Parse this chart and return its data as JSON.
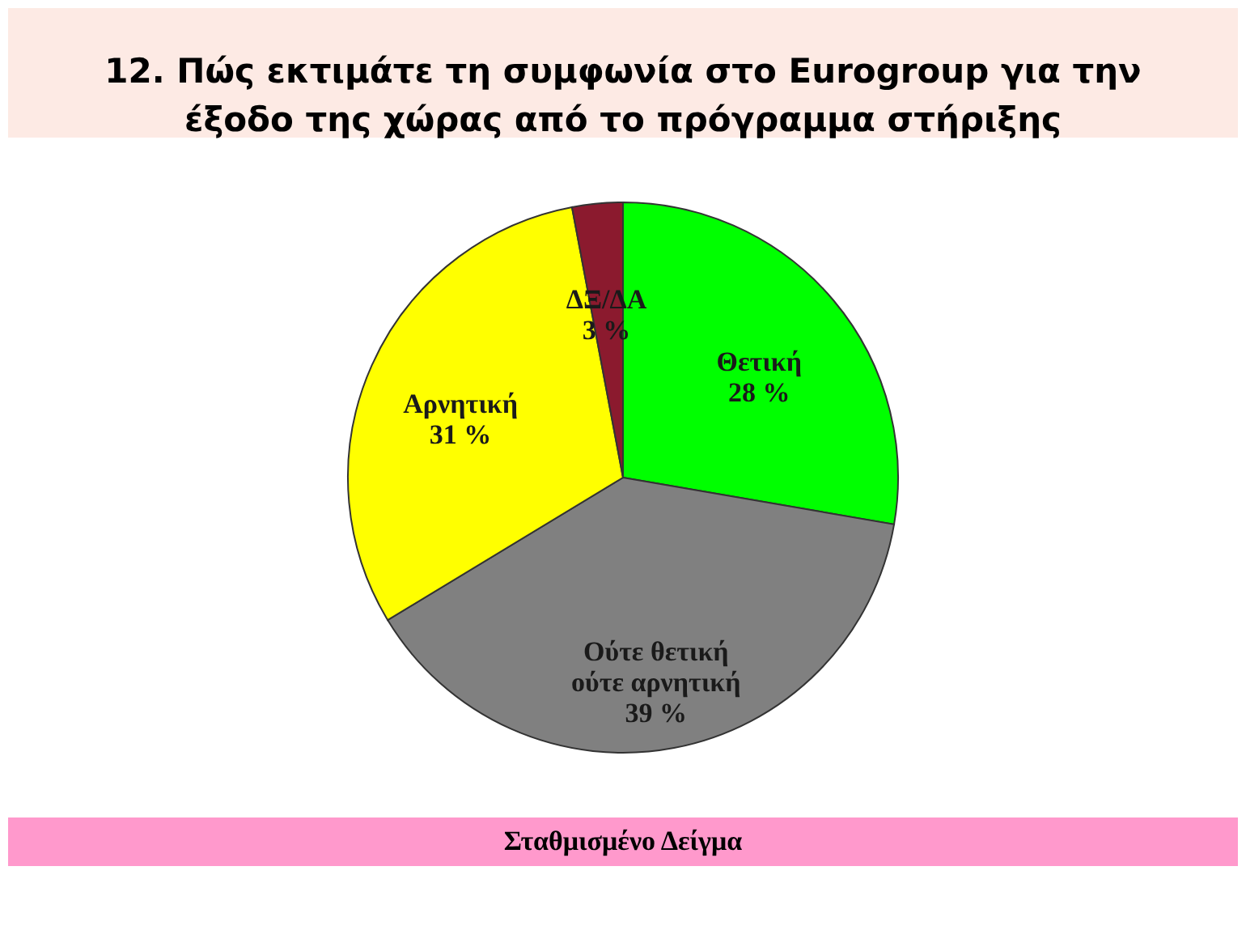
{
  "chart_data": {
    "type": "pie",
    "title": "12. Πώς εκτιμάτε τη συμφωνία στο Eurogroup για την έξοδο της χώρας από το πρόγραμμα στήριξης",
    "categories": [
      "Θετική",
      "Ούτε θετική ούτε αρνητική",
      "Αρνητική",
      "ΔΞ/ΔΑ"
    ],
    "values": [
      28,
      39,
      31,
      3
    ],
    "colors": [
      "#00ff00",
      "#808080",
      "#ffff00",
      "#8b1a2e"
    ],
    "value_labels": [
      "28 %",
      "39 %",
      "31 %",
      "3 %"
    ],
    "annotations": [
      "Σταθμισμένο Δείγμα"
    ],
    "legend": false
  }
}
